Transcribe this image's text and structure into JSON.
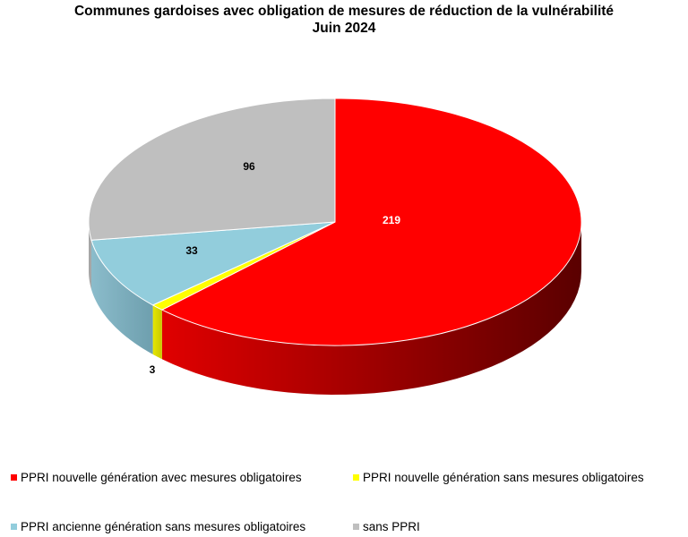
{
  "chart_data": {
    "type": "pie",
    "title": "Communes gardoises avec obligation de mesures de réduction de la vulnérabilité",
    "subtitle": "Juin 2024",
    "slices": [
      {
        "label": "PPRI nouvelle génération avec mesures obligatoires",
        "value": 219,
        "color": "#ff0000"
      },
      {
        "label": "PPRI nouvelle génération sans mesures obligatoires",
        "value": 3,
        "color": "#ffff00"
      },
      {
        "label": "PPRI ancienne génération sans mesures obligatoires",
        "value": 33,
        "color": "#92cddc"
      },
      {
        "label": "sans PPRI",
        "value": 96,
        "color": "#bfbfbf"
      }
    ],
    "legend_position": "bottom"
  }
}
